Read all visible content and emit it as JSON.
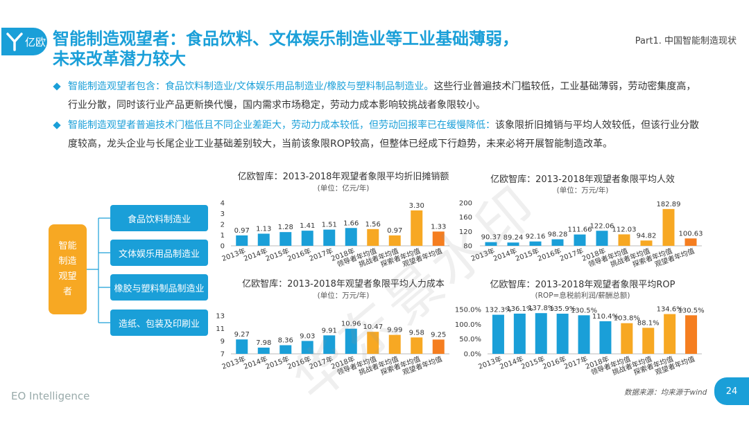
{
  "logo": {
    "text": "亿欧",
    "icon": "y-logo-icon"
  },
  "header": {
    "title_line1": "智能制造观望者：食品饮料、文体娱乐制造业等工业基础薄弱，",
    "title_line2": "未来改革潜力较大",
    "part": "Part1. 中国智能制造现状"
  },
  "bullets": [
    {
      "highlight": "智能制造观望者包含：食品饮料制造业/文体娱乐用品制造业/橡胶与塑料制品制造业。",
      "text": "这些行业普遍技术门槛较低，工业基础薄弱，劳动密集度高，行业分散，同时该行业产品更新换代慢，国内需求市场稳定，劳动力成本影响较挑战者象限较小。"
    },
    {
      "highlight": "智能制造观望者普遍技术门槛低且不同企业差距大，劳动力成本较低，但劳动回报率已在缓慢降低：",
      "text": "该象限折旧摊销与平均人效较低，但该行业分散度较高，龙头企业与长尾企业工业基础差别较大，当前该象限ROP较高，但整体已经成下行趋势，未来必将开展智能制造改革。"
    }
  ],
  "tree": {
    "root": "智能制造观望者",
    "nodes": [
      "食品饮料制造业",
      "文体娱乐用品制造业",
      "橡胶与塑料制品制造业",
      "造纸、包装及印刷业"
    ]
  },
  "colors": {
    "accent": "#1a9fd8",
    "orange": "#f7a823",
    "dark_orange": "#f57e20"
  },
  "chart_data": [
    {
      "type": "bar",
      "title": "亿欧智库：2013-2018年观望者象限平均折旧摊销额",
      "subtitle": "(单位：亿元/年)",
      "categories": [
        "2013年",
        "2014年",
        "2015年",
        "2016年",
        "2017年",
        "2018年",
        "领导者年均值",
        "挑战者年均值",
        "探索者年均值",
        "观望者年均值"
      ],
      "values": [
        0.97,
        1.13,
        1.28,
        1.41,
        1.51,
        1.66,
        1.56,
        0.97,
        3.3,
        1.33
      ],
      "labels": [
        "0.97",
        "1.13",
        "1.28",
        "1.41",
        "1.51",
        "1.66",
        "1.56",
        "0.97",
        "3.30",
        "1.33"
      ],
      "ylim": [
        0,
        4
      ],
      "yticks": [
        "0",
        "1",
        "2",
        "3",
        "4"
      ],
      "colors": [
        "#1a9fd8",
        "#1a9fd8",
        "#1a9fd8",
        "#1a9fd8",
        "#1a9fd8",
        "#1a9fd8",
        "#f7a823",
        "#f7a823",
        "#f7a823",
        "#f57e20"
      ]
    },
    {
      "type": "bar",
      "title": "亿欧智库：2013-2018年观望者象限平均人效",
      "subtitle": "(单位：万元/年)",
      "categories": [
        "2013年",
        "2014年",
        "2015年",
        "2016年",
        "2017年",
        "2018年",
        "领导者年均值",
        "挑战者年均值",
        "探索者年均值",
        "观望者年均值"
      ],
      "values": [
        90.37,
        89.24,
        92.16,
        98.28,
        111.66,
        122.06,
        112.03,
        94.82,
        182.89,
        100.63
      ],
      "labels": [
        "90.37",
        "89.24",
        "92.16",
        "98.28",
        "111.66",
        "122.06",
        "112.03",
        "94.82",
        "182.89",
        "100.63"
      ],
      "ylim": [
        80,
        200
      ],
      "yticks": [
        "80",
        "120",
        "160",
        "200"
      ],
      "colors": [
        "#1a9fd8",
        "#1a9fd8",
        "#1a9fd8",
        "#1a9fd8",
        "#1a9fd8",
        "#1a9fd8",
        "#f7a823",
        "#f7a823",
        "#f7a823",
        "#f57e20"
      ]
    },
    {
      "type": "bar",
      "title": "亿欧智库：2013-2018年观望者象限平均人力成本",
      "subtitle": "(单位：万元/年)",
      "categories": [
        "2013年",
        "2014年",
        "2015年",
        "2016年",
        "2017年",
        "2018年",
        "领导者年均值",
        "挑战者年均值",
        "探索者年均值",
        "观望者年均值"
      ],
      "values": [
        9.27,
        7.98,
        8.36,
        9.03,
        9.91,
        10.96,
        10.47,
        9.99,
        9.58,
        9.25
      ],
      "labels": [
        "9.27",
        "7.98",
        "8.36",
        "9.03",
        "9.91",
        "10.96",
        "10.47",
        "9.99",
        "9.58",
        "9.25"
      ],
      "ylim": [
        7,
        13
      ],
      "yticks": [
        "7",
        "9",
        "11",
        "13"
      ],
      "colors": [
        "#1a9fd8",
        "#1a9fd8",
        "#1a9fd8",
        "#1a9fd8",
        "#1a9fd8",
        "#1a9fd8",
        "#f7a823",
        "#f7a823",
        "#f7a823",
        "#f57e20"
      ]
    },
    {
      "type": "bar",
      "title": "亿欧智库：2013-2018年观望者象限平均ROP",
      "subtitle": "(ROP=息税前利润/薪酬总额)",
      "categories": [
        "2013年",
        "2014年",
        "2015年",
        "2016年",
        "2017年",
        "2018年",
        "领导者年均值",
        "挑战者年均值",
        "探索者年均值",
        "观望者年均值"
      ],
      "values": [
        132.3,
        136.1,
        137.8,
        135.9,
        130.5,
        110.4,
        103.8,
        88.1,
        134.6,
        130.5
      ],
      "labels": [
        "132.3%",
        "136.1%",
        "137.8%",
        "135.9%",
        "130.5%",
        "110.4%",
        "103.8%",
        "88.1%",
        "134.6%",
        "130.5%"
      ],
      "ylim": [
        0,
        150
      ],
      "yticks": [
        "0.0%",
        "50.0%",
        "100.0%",
        "150.0%"
      ],
      "colors": [
        "#1a9fd8",
        "#1a9fd8",
        "#1a9fd8",
        "#1a9fd8",
        "#1a9fd8",
        "#1a9fd8",
        "#f7a823",
        "#f7a823",
        "#f7a823",
        "#f57e20"
      ]
    }
  ],
  "footer": {
    "brand": "EO Intelligence",
    "source": "数据来源：均来源于wind",
    "page": "24"
  },
  "watermark": "华东景水印"
}
